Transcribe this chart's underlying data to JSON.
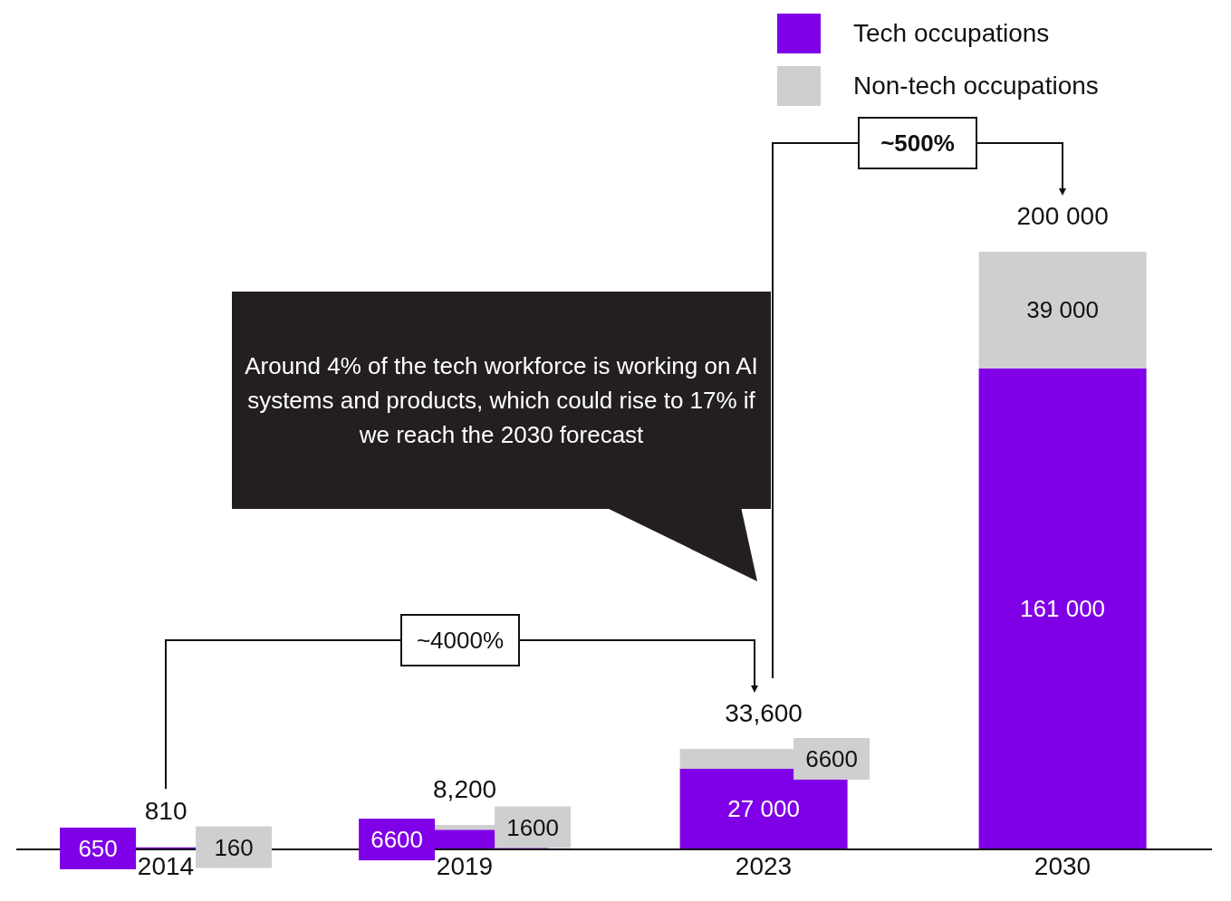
{
  "chart_data": {
    "type": "bar",
    "stacked": true,
    "categories": [
      "2014",
      "2019",
      "2023",
      "2030"
    ],
    "series": [
      {
        "name": "Tech occupations",
        "color": "#7f00e6",
        "values": [
          650,
          6600,
          27000,
          161000
        ],
        "value_labels": [
          "650",
          "6600",
          "27 000",
          "161 000"
        ]
      },
      {
        "name": "Non-tech occupations",
        "color": "#cfcfd1",
        "values": [
          160,
          1600,
          6600,
          39000
        ],
        "value_labels": [
          "160",
          "1600",
          "6600",
          "39 000"
        ]
      }
    ],
    "totals": [
      "810",
      "8,200",
      "33,600",
      "200 000"
    ],
    "legend": "top right",
    "grid": false,
    "annotations": [
      "Around 4% of the tech workforce is working on AI systems and products, which could rise to 17% if we reach the 2030 forecast",
      "~4000%",
      "~500%"
    ]
  }
}
